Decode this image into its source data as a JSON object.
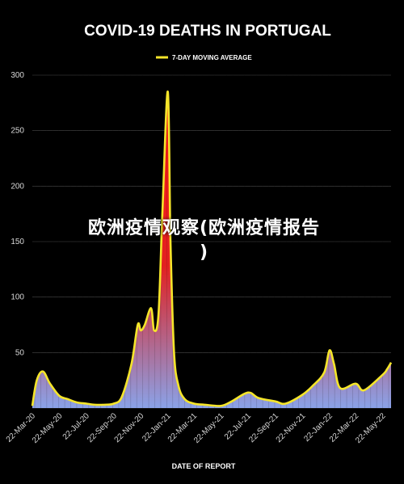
{
  "overlay": {
    "line1": "欧洲疫情观察(欧洲疫情报告",
    "line2": ")"
  },
  "colors": {
    "background": "#000000",
    "line": "#f5e52a",
    "fill_top": "#ff1a1a",
    "fill_bottom": "#8aa2e8",
    "grid": "#4a4a4a"
  },
  "chart_data": {
    "type": "area",
    "title": "COVID-19 DEATHS IN PORTUGAL",
    "xlabel": "DATE OF REPORT",
    "ylabel": "",
    "ylim": [
      0,
      300
    ],
    "yticks": [
      0,
      50,
      100,
      150,
      200,
      250,
      300
    ],
    "grid": "horizontal",
    "legend_position": "top",
    "x_tick_labels": [
      "22-Mar-20",
      "22-May-20",
      "22-Jul-20",
      "22-Sep-20",
      "22-Nov-20",
      "22-Jan-21",
      "22-Mar-21",
      "22-May-21",
      "22-Jul-21",
      "22-Sep-21",
      "22-Nov-21",
      "22-Jan-22",
      "22-Mar-22",
      "22-May-22"
    ],
    "series": [
      {
        "name": "7-DAY MOVING AVERAGE",
        "x": [
          "22-Mar-20",
          "1-Apr-20",
          "15-Apr-20",
          "1-May-20",
          "22-May-20",
          "10-Jun-20",
          "1-Jul-20",
          "22-Jul-20",
          "10-Aug-20",
          "1-Sep-20",
          "22-Sep-20",
          "10-Oct-20",
          "1-Nov-20",
          "15-Nov-20",
          "22-Nov-20",
          "1-Dec-20",
          "15-Dec-20",
          "22-Dec-20",
          "1-Jan-21",
          "10-Jan-21",
          "22-Jan-21",
          "28-Jan-21",
          "5-Feb-21",
          "15-Feb-21",
          "1-Mar-21",
          "22-Mar-21",
          "15-Apr-21",
          "22-May-21",
          "15-Jun-21",
          "22-Jul-21",
          "15-Aug-21",
          "22-Sep-21",
          "15-Oct-21",
          "22-Nov-21",
          "15-Dec-21",
          "10-Jan-22",
          "22-Jan-22",
          "1-Feb-22",
          "15-Feb-22",
          "22-Mar-22",
          "10-Apr-22",
          "22-May-22",
          "1-Jun-22",
          "10-Jun-22"
        ],
        "values": [
          2,
          25,
          33,
          22,
          11,
          8,
          5,
          4,
          3,
          3,
          4,
          10,
          40,
          75,
          70,
          75,
          90,
          70,
          85,
          180,
          285,
          150,
          50,
          20,
          8,
          4,
          3,
          2,
          6,
          14,
          9,
          6,
          4,
          12,
          20,
          32,
          52,
          40,
          18,
          22,
          16,
          30,
          35,
          41
        ]
      }
    ]
  }
}
